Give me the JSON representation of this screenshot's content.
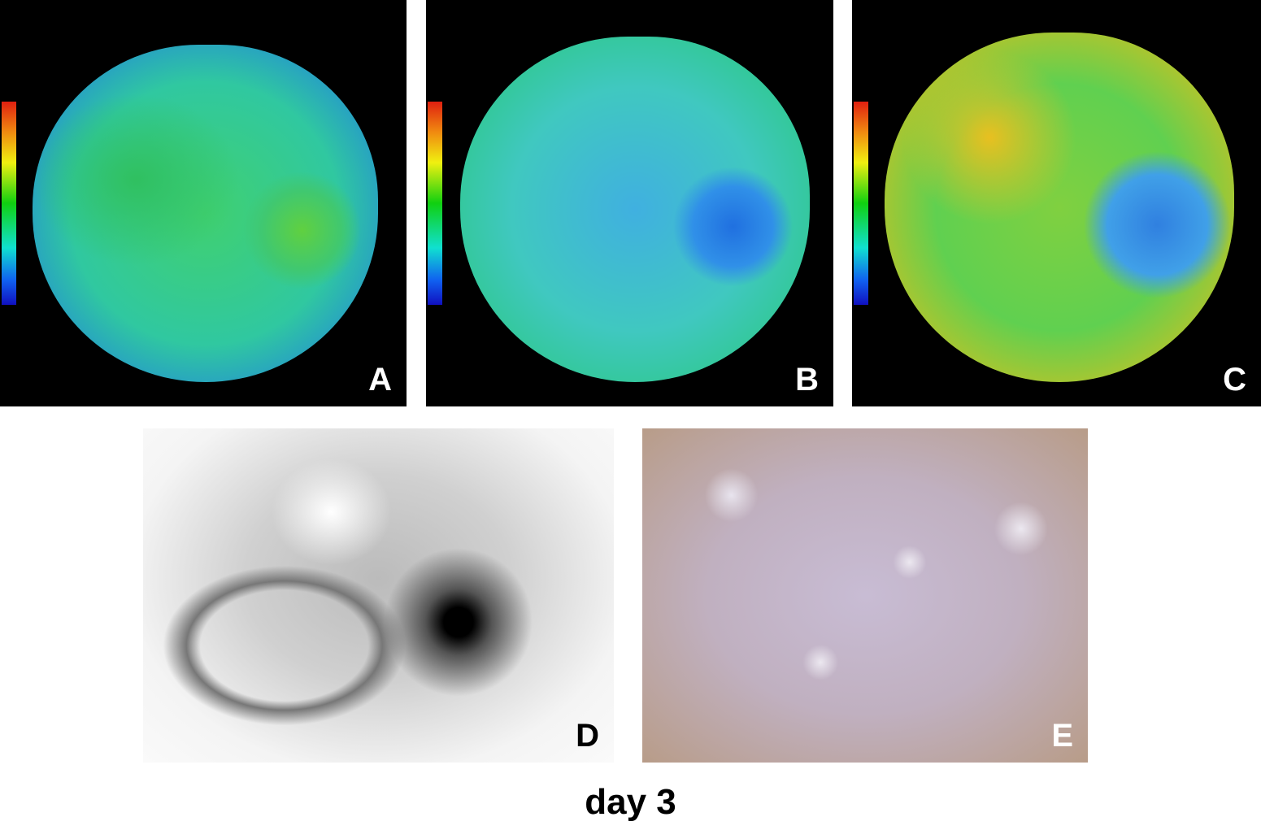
{
  "panels": [
    {
      "label": "A",
      "type": "parametric-map"
    },
    {
      "label": "B",
      "type": "parametric-map"
    },
    {
      "label": "C",
      "type": "parametric-map"
    },
    {
      "label": "D",
      "type": "scintigraphy"
    },
    {
      "label": "E",
      "type": "histology"
    }
  ],
  "caption": "day 3",
  "colors": {
    "colorbar": [
      "#e02010",
      "#f0f010",
      "#10d010",
      "#10e0d0",
      "#1010c0"
    ]
  }
}
